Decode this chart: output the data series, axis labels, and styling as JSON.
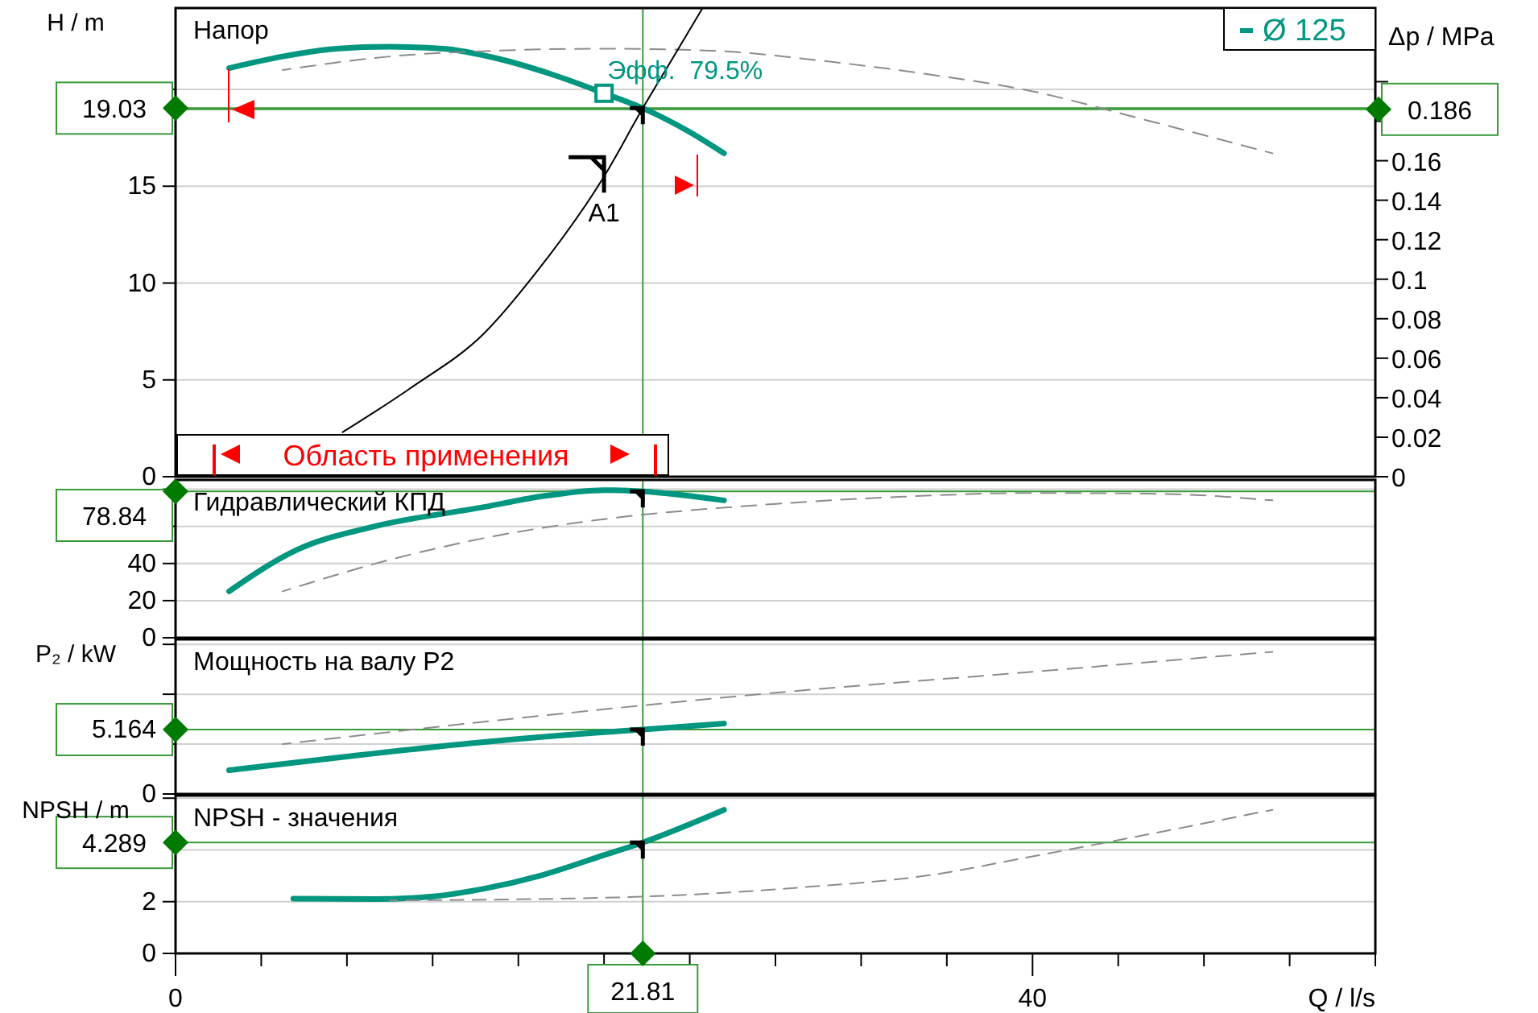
{
  "chart_data": [
    {
      "type": "line",
      "title": "Напор",
      "ylabel": "H / m",
      "y2label": "Δp / MPa",
      "xlim": [
        0,
        56
      ],
      "tick_labels": "y",
      "ylim": [
        0,
        24.2
      ],
      "yticks": [
        0,
        5,
        10,
        15,
        {
          "value": 20,
          "label": null
        }
      ],
      "y2lim": [
        0,
        0.2373
      ],
      "y2ticks": [
        0,
        0.02,
        0.04,
        0.06,
        0.08,
        0.1,
        0.12,
        0.14,
        0.16,
        {
          "value": 0.18,
          "label": null
        },
        {
          "value": 0.2,
          "label": null
        }
      ],
      "grid": "y",
      "legend": "top right",
      "series": [
        {
          "name": "Ø 125",
          "color": "#00967f",
          "x": [
            2.5,
            5,
            7.5,
            10,
            12.5,
            15,
            17.5,
            20,
            21.81,
            24,
            25.6
          ],
          "values": [
            21.1,
            21.7,
            22.1,
            22.2,
            22.1,
            21.6,
            20.8,
            19.8,
            19.03,
            17.8,
            16.7
          ]
        },
        {
          "color": "#8c8c8c",
          "line_style": "dashed",
          "x": [
            5,
            10,
            15,
            20,
            25,
            30,
            35,
            40,
            45,
            51.2
          ],
          "values": [
            21.0,
            21.7,
            22.0,
            22.1,
            22.0,
            21.5,
            20.8,
            19.9,
            18.5,
            16.7
          ]
        },
        {
          "color": "#000000",
          "x": [
            7.8,
            11,
            14.4,
            16.8,
            20,
            21.81,
            23.2,
            24.6
          ],
          "values": [
            2.3,
            4.6,
            7.4,
            10.5,
            15.5,
            19.03,
            21.6,
            24.2
          ]
        }
      ],
      "ref_lines": [
        {
          "axis": "y",
          "value": 19.03,
          "label": "19.03",
          "color": "#3a9a3a"
        },
        {
          "axis": "y2",
          "value": 0.186,
          "label": "0.186",
          "color": "#3a9a3a"
        },
        {
          "axis": "x",
          "value": 21.81,
          "color": "#3a9a3a"
        }
      ],
      "annotations": [
        {
          "text": "Эфф.  79.5%",
          "x": 20,
          "y": 19.8
        },
        {
          "text": "A1",
          "x": 20,
          "y": 15.5
        },
        "Область применения"
      ]
    },
    {
      "type": "line",
      "title": "Гидравлический КПД",
      "xlim": [
        0,
        56
      ],
      "tick_labels": "y",
      "ylim": [
        0,
        85
      ],
      "yticks": [
        0,
        20,
        40,
        {
          "value": 60,
          "label": null
        },
        {
          "value": 80,
          "label": null
        }
      ],
      "grid": "y",
      "series": [
        {
          "color": "#00967f",
          "x": [
            2.5,
            5.6,
            9.3,
            14.4,
            17,
            20,
            21.81,
            25.6
          ],
          "values": [
            25,
            47,
            60,
            70.4,
            76,
            79.5,
            78.84,
            74
          ]
        },
        {
          "color": "#8c8c8c",
          "line_style": "dashed",
          "x": [
            5,
            10,
            15,
            19.4,
            27.9,
            34,
            40,
            46,
            51.2
          ],
          "values": [
            25,
            42,
            55,
            63,
            72,
            76,
            78,
            77.5,
            74
          ]
        }
      ],
      "ref_lines": [
        {
          "axis": "y",
          "value": 78.84,
          "label": "78.84",
          "color": "#3a9a3a"
        },
        {
          "axis": "x",
          "value": 21.81,
          "color": "#3a9a3a"
        }
      ]
    },
    {
      "type": "line",
      "title": "Мощность на валу P2",
      "ylabel": "P₂ / kW",
      "xlim": [
        0,
        56
      ],
      "tick_labels": "y",
      "ylim": [
        0,
        12.4
      ],
      "yticks": [
        0,
        {
          "value": 4,
          "label": null
        },
        {
          "value": 5.164,
          "label": "5.164"
        },
        {
          "value": 8,
          "label": null
        },
        {
          "value": 12,
          "label": null
        }
      ],
      "grid": "y",
      "series": [
        {
          "color": "#00967f",
          "x": [
            2.5,
            8,
            14,
            20,
            21.81,
            25.6
          ],
          "values": [
            1.9,
            3.0,
            4.1,
            4.95,
            5.164,
            5.65
          ]
        },
        {
          "color": "#8c8c8c",
          "line_style": "dashed",
          "x": [
            5,
            15,
            27.9,
            40,
            51.2
          ],
          "values": [
            4.0,
            5.9,
            8.1,
            9.8,
            11.4
          ]
        }
      ],
      "ref_lines": [
        {
          "axis": "y",
          "value": 5.164,
          "color": "#3a9a3a"
        },
        {
          "axis": "x",
          "value": 21.81,
          "color": "#3a9a3a"
        }
      ]
    },
    {
      "type": "line",
      "title": "NPSH - значения",
      "ylabel": "NPSH / m",
      "xlabel": "Q / l/s",
      "xlim": [
        0,
        56
      ],
      "xticks": [
        0,
        {
          "value": 4,
          "label": null
        },
        {
          "value": 8,
          "label": null
        },
        {
          "value": 12,
          "label": null
        },
        {
          "value": 16,
          "label": null
        },
        {
          "value": 20,
          "label": null
        },
        {
          "value": 24,
          "label": null
        },
        {
          "value": 28,
          "label": null
        },
        {
          "value": 32,
          "label": null
        },
        {
          "value": 36,
          "label": null
        },
        40,
        {
          "value": 44,
          "label": null
        },
        {
          "value": 48,
          "label": null
        },
        {
          "value": 52,
          "label": null
        },
        {
          "value": 56,
          "label": null
        }
      ],
      "ylim": [
        0,
        6.1
      ],
      "yticks": [
        0,
        2,
        {
          "value": 4,
          "label": null
        },
        {
          "value": 6,
          "label": null
        }
      ],
      "grid": "y",
      "series": [
        {
          "color": "#00967f",
          "x": [
            5.5,
            9.3,
            12,
            14.4,
            17,
            20,
            21.81,
            25.6
          ],
          "values": [
            2.12,
            2.1,
            2.2,
            2.5,
            3.0,
            3.8,
            4.289,
            5.55
          ]
        },
        {
          "color": "#8c8c8c",
          "line_style": "dashed",
          "x": [
            10,
            20,
            29.2,
            35,
            40,
            46,
            51.2
          ],
          "values": [
            2.05,
            2.15,
            2.55,
            3.0,
            3.75,
            4.7,
            5.55
          ]
        }
      ],
      "ref_lines": [
        {
          "axis": "y",
          "value": 4.289,
          "label": "4.289",
          "color": "#3a9a3a"
        },
        {
          "axis": "x",
          "value": 21.81,
          "label": "21.81",
          "color": "#3a9a3a"
        }
      ]
    }
  ]
}
